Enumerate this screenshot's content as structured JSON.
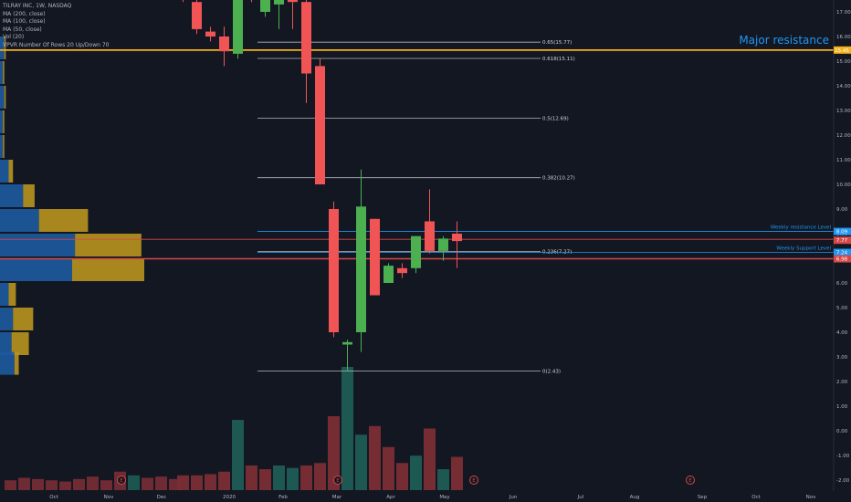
{
  "header": {
    "symbol_line": "TILRAY INC, 1W, NASDAQ",
    "indicators": [
      "MA (200, close)",
      "MA (100, close)",
      "MA (50, close)",
      "Vol (20)",
      "VPVR Number Of Rows 20 Up/Down 70"
    ]
  },
  "colors": {
    "background": "#131722",
    "up": "#4caf50",
    "down": "#f05454",
    "vol_up": "#1e5c55",
    "vol_down": "#7a2d35",
    "vp_up": "#1e5aa0",
    "vp_down": "#b8941e",
    "major_resistance": "#f5b21a",
    "fib": "#b2b5be",
    "resistance_line": "#d54848",
    "support_line": "#2196f3"
  },
  "chart_data": {
    "type": "candlestick",
    "title": "TILRAY INC, 1W, NASDAQ",
    "ylim": [
      -2.4,
      18.0
    ],
    "y_ticks": [
      -2.0,
      -1.0,
      0.0,
      1.0,
      2.0,
      3.0,
      4.0,
      5.0,
      6.0,
      7.0,
      8.0,
      9.0,
      10.0,
      11.0,
      12.0,
      13.0,
      14.0,
      15.0,
      16.0,
      17.0
    ],
    "x_ticks": [
      "Oct",
      "Nov",
      "Dec",
      "2020",
      "Feb",
      "Mar",
      "Apr",
      "May",
      "Jun",
      "Jul",
      "Aug",
      "Sep",
      "Oct",
      "Nov"
    ],
    "candles": [
      {
        "o": 17.7,
        "h": 18.5,
        "l": 17.4,
        "c": 17.5
      },
      {
        "o": 17.4,
        "h": 18.2,
        "l": 16.1,
        "c": 16.3
      },
      {
        "o": 16.2,
        "h": 16.4,
        "l": 15.8,
        "c": 16.0
      },
      {
        "o": 16.0,
        "h": 16.4,
        "l": 14.8,
        "c": 15.4
      },
      {
        "o": 15.3,
        "h": 19.5,
        "l": 15.1,
        "c": 19.0
      },
      {
        "o": 18.5,
        "h": 19.5,
        "l": 17.4,
        "c": 17.6
      },
      {
        "o": 17.0,
        "h": 18.5,
        "l": 16.8,
        "c": 17.5
      },
      {
        "o": 17.3,
        "h": 18.2,
        "l": 16.3,
        "c": 17.8
      },
      {
        "o": 17.8,
        "h": 18.6,
        "l": 16.3,
        "c": 17.4
      },
      {
        "o": 17.4,
        "h": 18.5,
        "l": 13.3,
        "c": 14.5
      },
      {
        "o": 14.8,
        "h": 15.1,
        "l": 10.0,
        "c": 10.0
      },
      {
        "o": 9.0,
        "h": 9.3,
        "l": 3.8,
        "c": 4.0
      },
      {
        "o": 3.5,
        "h": 3.7,
        "l": 2.45,
        "c": 3.6
      },
      {
        "o": 4.0,
        "h": 10.6,
        "l": 3.2,
        "c": 9.1
      },
      {
        "o": 8.6,
        "h": 8.6,
        "l": 5.5,
        "c": 5.5
      },
      {
        "o": 6.0,
        "h": 6.8,
        "l": 6.0,
        "c": 6.7
      },
      {
        "o": 6.6,
        "h": 6.8,
        "l": 6.2,
        "c": 6.4
      },
      {
        "o": 6.6,
        "h": 7.9,
        "l": 6.4,
        "c": 7.9
      },
      {
        "o": 8.5,
        "h": 9.8,
        "l": 7.2,
        "c": 7.3
      },
      {
        "o": 7.3,
        "h": 7.9,
        "l": 6.9,
        "c": 7.8
      },
      {
        "o": 8.0,
        "h": 8.5,
        "l": 6.6,
        "c": 7.7
      }
    ],
    "volume": [
      {
        "v": 0.12,
        "up": false
      },
      {
        "v": 0.12,
        "up": false
      },
      {
        "v": 0.13,
        "up": false
      },
      {
        "v": 0.15,
        "up": false
      },
      {
        "v": 0.57,
        "up": true
      },
      {
        "v": 0.2,
        "up": false
      },
      {
        "v": 0.17,
        "up": false
      },
      {
        "v": 0.2,
        "up": true
      },
      {
        "v": 0.18,
        "up": true
      },
      {
        "v": 0.2,
        "up": false
      },
      {
        "v": 0.22,
        "up": false
      },
      {
        "v": 0.6,
        "up": false
      },
      {
        "v": 1.0,
        "up": true
      },
      {
        "v": 0.45,
        "up": true
      },
      {
        "v": 0.52,
        "up": false
      },
      {
        "v": 0.35,
        "up": false
      },
      {
        "v": 0.22,
        "up": false
      },
      {
        "v": 0.28,
        "up": true
      },
      {
        "v": 0.5,
        "up": false
      },
      {
        "v": 0.17,
        "up": true
      },
      {
        "v": 0.27,
        "up": false
      }
    ],
    "volume_profile": [
      {
        "price": 15.5,
        "up": 0.03,
        "down": 0.01
      },
      {
        "price": 14.5,
        "up": 0.02,
        "down": 0.01
      },
      {
        "price": 13.5,
        "up": 0.03,
        "down": 0.01
      },
      {
        "price": 12.5,
        "up": 0.02,
        "down": 0.01
      },
      {
        "price": 11.5,
        "up": 0.02,
        "down": 0.01
      },
      {
        "price": 10.5,
        "up": 0.06,
        "down": 0.03
      },
      {
        "price": 9.5,
        "up": 0.16,
        "down": 0.08
      },
      {
        "price": 8.5,
        "up": 0.27,
        "down": 0.34
      },
      {
        "price": 7.5,
        "up": 0.52,
        "down": 0.46
      },
      {
        "price": 6.5,
        "up": 0.5,
        "down": 0.5
      },
      {
        "price": 5.5,
        "up": 0.06,
        "down": 0.05
      },
      {
        "price": 4.5,
        "up": 0.09,
        "down": 0.14
      },
      {
        "price": 3.5,
        "up": 0.08,
        "down": 0.12
      },
      {
        "price": 2.7,
        "up": 0.1,
        "down": 0.03
      }
    ],
    "fib_levels": [
      {
        "price": 15.77,
        "label": "0.65(15.77)"
      },
      {
        "price": 15.11,
        "label": "0.618(15.11)"
      },
      {
        "price": 12.69,
        "label": "0.5(12.69)"
      },
      {
        "price": 10.27,
        "label": "0.382(10.27)"
      },
      {
        "price": 7.27,
        "label": "0.236(7.27)"
      },
      {
        "price": 2.43,
        "label": "0(2.43)"
      }
    ],
    "major_resistance": {
      "price": 15.45,
      "label": "Major resistance"
    },
    "resistance_levels": [
      {
        "price": 8.09,
        "label": "Weekly resistance Level"
      },
      {
        "price": 7.24,
        "label": "Weekly Support Level"
      }
    ],
    "price_tags": [
      "15.45",
      "8.09",
      "7.77",
      "7.24",
      "6.98"
    ],
    "red_lines": [
      7.77,
      6.98
    ]
  }
}
